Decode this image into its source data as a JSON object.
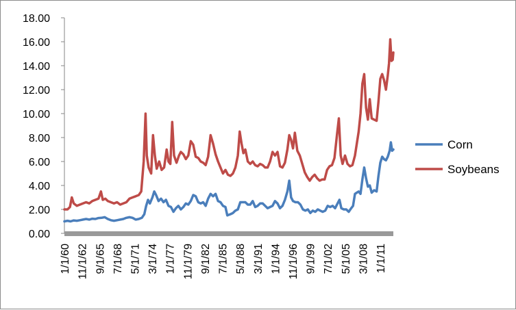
{
  "chart_data": {
    "type": "line",
    "title": "",
    "xlabel": "",
    "ylabel": "",
    "ylim": [
      0,
      18
    ],
    "yticks": [
      "0.00",
      "2.00",
      "4.00",
      "6.00",
      "8.00",
      "10.00",
      "12.00",
      "14.00",
      "16.00",
      "18.00"
    ],
    "xticks": [
      {
        "label": "1/1/60",
        "x": 1960.0
      },
      {
        "label": "11/1/62",
        "x": 1962.83
      },
      {
        "label": "9/1/65",
        "x": 1965.67
      },
      {
        "label": "7/1/68",
        "x": 1968.5
      },
      {
        "label": "5/1/71",
        "x": 1971.33
      },
      {
        "label": "3/1/74",
        "x": 1974.17
      },
      {
        "label": "1/1/77",
        "x": 1977.0
      },
      {
        "label": "11/1/79",
        "x": 1979.83
      },
      {
        "label": "9/1/82",
        "x": 1982.67
      },
      {
        "label": "7/1/85",
        "x": 1985.5
      },
      {
        "label": "5/1/88",
        "x": 1988.33
      },
      {
        "label": "3/1/91",
        "x": 1991.17
      },
      {
        "label": "1/1/94",
        "x": 1994.0
      },
      {
        "label": "11/1/96",
        "x": 1996.83
      },
      {
        "label": "9/1/99",
        "x": 1999.67
      },
      {
        "label": "7/1/02",
        "x": 2002.5
      },
      {
        "label": "5/1/05",
        "x": 2005.33
      },
      {
        "label": "3/1/08",
        "x": 2008.17
      },
      {
        "label": "1/1/11",
        "x": 2011.0
      }
    ],
    "xlim": [
      1960.0,
      2013.1
    ],
    "grid": false,
    "legend_position": "right",
    "series": [
      {
        "name": "Corn",
        "color": "#4a7ebb",
        "points": [
          [
            1960.0,
            1.0
          ],
          [
            1960.5,
            1.05
          ],
          [
            1961.0,
            1.0
          ],
          [
            1961.5,
            1.08
          ],
          [
            1962.0,
            1.05
          ],
          [
            1962.5,
            1.1
          ],
          [
            1963.0,
            1.15
          ],
          [
            1963.5,
            1.2
          ],
          [
            1964.0,
            1.15
          ],
          [
            1964.5,
            1.22
          ],
          [
            1965.0,
            1.2
          ],
          [
            1965.5,
            1.28
          ],
          [
            1966.0,
            1.3
          ],
          [
            1966.5,
            1.35
          ],
          [
            1967.0,
            1.2
          ],
          [
            1967.5,
            1.1
          ],
          [
            1968.0,
            1.05
          ],
          [
            1968.5,
            1.1
          ],
          [
            1969.0,
            1.15
          ],
          [
            1969.5,
            1.2
          ],
          [
            1970.0,
            1.3
          ],
          [
            1970.5,
            1.35
          ],
          [
            1971.0,
            1.3
          ],
          [
            1971.5,
            1.15
          ],
          [
            1972.0,
            1.2
          ],
          [
            1972.5,
            1.3
          ],
          [
            1972.9,
            1.6
          ],
          [
            1973.2,
            2.3
          ],
          [
            1973.5,
            2.8
          ],
          [
            1973.8,
            2.5
          ],
          [
            1974.2,
            3.0
          ],
          [
            1974.5,
            3.5
          ],
          [
            1974.8,
            3.2
          ],
          [
            1975.2,
            2.7
          ],
          [
            1975.6,
            2.9
          ],
          [
            1976.0,
            2.6
          ],
          [
            1976.4,
            2.8
          ],
          [
            1976.8,
            2.3
          ],
          [
            1977.2,
            2.2
          ],
          [
            1977.6,
            1.8
          ],
          [
            1978.0,
            2.1
          ],
          [
            1978.4,
            2.3
          ],
          [
            1978.8,
            2.0
          ],
          [
            1979.2,
            2.2
          ],
          [
            1979.6,
            2.5
          ],
          [
            1980.0,
            2.4
          ],
          [
            1980.4,
            2.7
          ],
          [
            1980.8,
            3.2
          ],
          [
            1981.2,
            3.1
          ],
          [
            1981.6,
            2.6
          ],
          [
            1982.0,
            2.5
          ],
          [
            1982.4,
            2.6
          ],
          [
            1982.8,
            2.3
          ],
          [
            1983.2,
            2.9
          ],
          [
            1983.6,
            3.3
          ],
          [
            1984.0,
            3.1
          ],
          [
            1984.4,
            3.3
          ],
          [
            1984.8,
            2.7
          ],
          [
            1985.2,
            2.6
          ],
          [
            1985.6,
            2.3
          ],
          [
            1986.0,
            2.2
          ],
          [
            1986.3,
            1.5
          ],
          [
            1986.8,
            1.6
          ],
          [
            1987.2,
            1.7
          ],
          [
            1987.6,
            1.9
          ],
          [
            1988.0,
            2.0
          ],
          [
            1988.4,
            2.6
          ],
          [
            1988.8,
            2.6
          ],
          [
            1989.2,
            2.6
          ],
          [
            1989.6,
            2.4
          ],
          [
            1990.0,
            2.4
          ],
          [
            1990.4,
            2.7
          ],
          [
            1990.8,
            2.2
          ],
          [
            1991.2,
            2.3
          ],
          [
            1991.6,
            2.5
          ],
          [
            1992.0,
            2.5
          ],
          [
            1992.4,
            2.3
          ],
          [
            1992.8,
            2.1
          ],
          [
            1993.2,
            2.2
          ],
          [
            1993.6,
            2.3
          ],
          [
            1994.0,
            2.7
          ],
          [
            1994.4,
            2.5
          ],
          [
            1994.8,
            2.1
          ],
          [
            1995.2,
            2.3
          ],
          [
            1995.6,
            2.8
          ],
          [
            1996.0,
            3.5
          ],
          [
            1996.3,
            4.4
          ],
          [
            1996.6,
            3.0
          ],
          [
            1996.9,
            2.7
          ],
          [
            1997.3,
            2.6
          ],
          [
            1997.7,
            2.6
          ],
          [
            1998.1,
            2.4
          ],
          [
            1998.5,
            2.0
          ],
          [
            1998.9,
            1.9
          ],
          [
            1999.3,
            2.0
          ],
          [
            1999.7,
            1.7
          ],
          [
            2000.1,
            1.9
          ],
          [
            2000.5,
            1.8
          ],
          [
            2000.9,
            2.0
          ],
          [
            2001.3,
            1.9
          ],
          [
            2001.7,
            1.8
          ],
          [
            2002.1,
            1.9
          ],
          [
            2002.5,
            2.3
          ],
          [
            2002.9,
            2.2
          ],
          [
            2003.3,
            2.3
          ],
          [
            2003.7,
            2.1
          ],
          [
            2004.1,
            2.5
          ],
          [
            2004.4,
            2.8
          ],
          [
            2004.7,
            2.1
          ],
          [
            2005.1,
            2.0
          ],
          [
            2005.5,
            2.0
          ],
          [
            2005.9,
            1.8
          ],
          [
            2006.3,
            2.1
          ],
          [
            2006.6,
            2.3
          ],
          [
            2006.9,
            3.3
          ],
          [
            2007.2,
            3.4
          ],
          [
            2007.5,
            3.5
          ],
          [
            2007.8,
            3.3
          ],
          [
            2008.1,
            4.5
          ],
          [
            2008.4,
            5.5
          ],
          [
            2008.7,
            4.6
          ],
          [
            2009.0,
            3.9
          ],
          [
            2009.3,
            4.0
          ],
          [
            2009.6,
            3.4
          ],
          [
            2010.0,
            3.6
          ],
          [
            2010.4,
            3.5
          ],
          [
            2010.7,
            4.8
          ],
          [
            2011.0,
            5.9
          ],
          [
            2011.3,
            6.4
          ],
          [
            2011.6,
            6.2
          ],
          [
            2011.9,
            6.1
          ],
          [
            2012.2,
            6.4
          ],
          [
            2012.5,
            6.9
          ],
          [
            2012.7,
            7.6
          ],
          [
            2012.9,
            6.9
          ],
          [
            2013.1,
            7.0
          ]
        ]
      },
      {
        "name": "Soybeans",
        "color": "#be4b48",
        "points": [
          [
            1960.0,
            2.0
          ],
          [
            1960.5,
            2.0
          ],
          [
            1960.9,
            2.2
          ],
          [
            1961.2,
            3.0
          ],
          [
            1961.5,
            2.5
          ],
          [
            1962.0,
            2.3
          ],
          [
            1962.5,
            2.4
          ],
          [
            1963.0,
            2.5
          ],
          [
            1963.5,
            2.6
          ],
          [
            1964.0,
            2.5
          ],
          [
            1964.5,
            2.7
          ],
          [
            1965.0,
            2.8
          ],
          [
            1965.5,
            2.9
          ],
          [
            1965.9,
            3.5
          ],
          [
            1966.2,
            2.8
          ],
          [
            1966.6,
            2.9
          ],
          [
            1967.0,
            2.7
          ],
          [
            1967.5,
            2.6
          ],
          [
            1968.0,
            2.5
          ],
          [
            1968.5,
            2.6
          ],
          [
            1969.0,
            2.4
          ],
          [
            1969.5,
            2.5
          ],
          [
            1970.0,
            2.6
          ],
          [
            1970.5,
            2.9
          ],
          [
            1971.0,
            3.0
          ],
          [
            1971.5,
            3.1
          ],
          [
            1972.0,
            3.2
          ],
          [
            1972.4,
            3.5
          ],
          [
            1972.8,
            6.0
          ],
          [
            1973.1,
            10.0
          ],
          [
            1973.3,
            6.5
          ],
          [
            1973.6,
            5.5
          ],
          [
            1974.0,
            5.0
          ],
          [
            1974.3,
            8.2
          ],
          [
            1974.6,
            6.5
          ],
          [
            1974.9,
            5.4
          ],
          [
            1975.3,
            6.0
          ],
          [
            1975.7,
            5.3
          ],
          [
            1976.1,
            5.5
          ],
          [
            1976.5,
            7.0
          ],
          [
            1976.8,
            6.0
          ],
          [
            1977.1,
            5.8
          ],
          [
            1977.4,
            9.3
          ],
          [
            1977.7,
            6.5
          ],
          [
            1978.1,
            5.9
          ],
          [
            1978.5,
            6.5
          ],
          [
            1978.8,
            6.8
          ],
          [
            1979.2,
            6.6
          ],
          [
            1979.6,
            6.2
          ],
          [
            1980.0,
            6.5
          ],
          [
            1980.4,
            7.7
          ],
          [
            1980.8,
            7.4
          ],
          [
            1981.2,
            6.4
          ],
          [
            1981.6,
            6.3
          ],
          [
            1982.0,
            6.0
          ],
          [
            1982.4,
            5.9
          ],
          [
            1982.8,
            5.7
          ],
          [
            1983.2,
            6.4
          ],
          [
            1983.6,
            8.2
          ],
          [
            1984.0,
            7.5
          ],
          [
            1984.4,
            6.6
          ],
          [
            1984.8,
            6.0
          ],
          [
            1985.2,
            5.5
          ],
          [
            1985.6,
            5.0
          ],
          [
            1986.0,
            5.3
          ],
          [
            1986.4,
            4.9
          ],
          [
            1986.8,
            4.8
          ],
          [
            1987.2,
            5.0
          ],
          [
            1987.6,
            5.5
          ],
          [
            1988.0,
            6.5
          ],
          [
            1988.3,
            8.5
          ],
          [
            1988.6,
            7.5
          ],
          [
            1988.9,
            6.7
          ],
          [
            1989.2,
            7.0
          ],
          [
            1989.6,
            6.0
          ],
          [
            1990.0,
            5.8
          ],
          [
            1990.4,
            6.0
          ],
          [
            1990.8,
            5.7
          ],
          [
            1991.2,
            5.6
          ],
          [
            1991.6,
            5.8
          ],
          [
            1992.0,
            5.7
          ],
          [
            1992.4,
            5.5
          ],
          [
            1992.8,
            5.5
          ],
          [
            1993.2,
            6.0
          ],
          [
            1993.6,
            6.8
          ],
          [
            1994.0,
            6.5
          ],
          [
            1994.4,
            6.8
          ],
          [
            1994.8,
            5.6
          ],
          [
            1995.2,
            5.5
          ],
          [
            1995.6,
            5.9
          ],
          [
            1996.0,
            7.0
          ],
          [
            1996.3,
            8.2
          ],
          [
            1996.6,
            7.8
          ],
          [
            1996.9,
            7.1
          ],
          [
            1997.2,
            8.4
          ],
          [
            1997.6,
            6.9
          ],
          [
            1998.0,
            6.5
          ],
          [
            1998.4,
            5.8
          ],
          [
            1998.8,
            5.1
          ],
          [
            1999.2,
            4.7
          ],
          [
            1999.6,
            4.4
          ],
          [
            2000.0,
            4.7
          ],
          [
            2000.4,
            4.9
          ],
          [
            2000.8,
            4.6
          ],
          [
            2001.2,
            4.4
          ],
          [
            2001.6,
            4.5
          ],
          [
            2002.0,
            4.5
          ],
          [
            2002.4,
            5.3
          ],
          [
            2002.8,
            5.6
          ],
          [
            2003.2,
            5.7
          ],
          [
            2003.6,
            6.3
          ],
          [
            2004.0,
            8.2
          ],
          [
            2004.3,
            9.6
          ],
          [
            2004.6,
            6.5
          ],
          [
            2004.9,
            5.8
          ],
          [
            2005.3,
            6.5
          ],
          [
            2005.7,
            5.8
          ],
          [
            2006.1,
            5.6
          ],
          [
            2006.5,
            5.7
          ],
          [
            2006.9,
            6.5
          ],
          [
            2007.2,
            7.5
          ],
          [
            2007.5,
            8.5
          ],
          [
            2007.8,
            10.0
          ],
          [
            2008.1,
            12.5
          ],
          [
            2008.4,
            13.3
          ],
          [
            2008.7,
            10.5
          ],
          [
            2009.0,
            9.5
          ],
          [
            2009.3,
            11.2
          ],
          [
            2009.6,
            9.6
          ],
          [
            2010.0,
            9.5
          ],
          [
            2010.4,
            9.4
          ],
          [
            2010.7,
            11.0
          ],
          [
            2011.0,
            12.9
          ],
          [
            2011.3,
            13.3
          ],
          [
            2011.6,
            12.8
          ],
          [
            2011.9,
            12.0
          ],
          [
            2012.2,
            13.2
          ],
          [
            2012.4,
            14.2
          ],
          [
            2012.6,
            16.2
          ],
          [
            2012.8,
            14.4
          ],
          [
            2013.0,
            14.5
          ],
          [
            2013.1,
            15.1
          ]
        ]
      }
    ]
  }
}
